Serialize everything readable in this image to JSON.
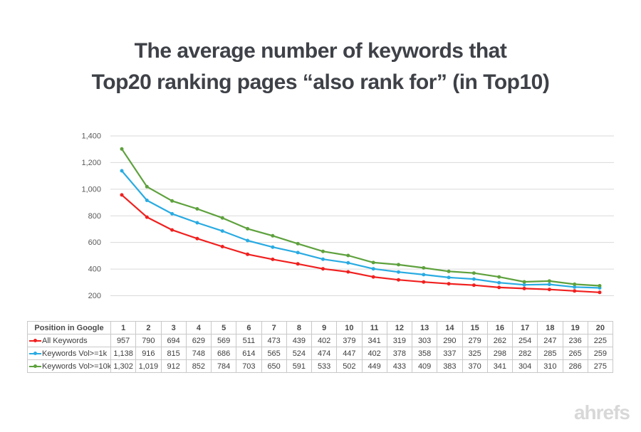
{
  "title": {
    "line1": "The average number of keywords that",
    "line2": "Top20 ranking pages “also rank for” (in Top10)"
  },
  "footer": {
    "logo_text": "ahrefs"
  },
  "colors": {
    "title_text": "#3e4147",
    "grid": "#d9d9d9",
    "axis_label": "#595959",
    "table_border": "#c9c9c9",
    "table_text": "#3d3d3d",
    "logo_text": "#d8d8d8",
    "series_red": "#f0201f",
    "series_blue": "#29abe2",
    "series_green": "#5ea13d"
  },
  "chart_data": {
    "type": "line",
    "title": "The average number of keywords that Top20 ranking pages “also rank for” (in Top10)",
    "x_label_header": "Position in Google",
    "x": [
      1,
      2,
      3,
      4,
      5,
      6,
      7,
      8,
      9,
      10,
      11,
      12,
      13,
      14,
      15,
      16,
      17,
      18,
      19,
      20
    ],
    "series": [
      {
        "name": "All Keywords",
        "color": "#f0201f",
        "values": [
          957,
          790,
          694,
          629,
          569,
          511,
          473,
          439,
          402,
          379,
          341,
          319,
          303,
          290,
          279,
          262,
          254,
          247,
          236,
          225
        ]
      },
      {
        "name": "Keywords Vol>=1k",
        "color": "#29abe2",
        "values": [
          1138,
          916,
          815,
          748,
          686,
          614,
          565,
          524,
          474,
          447,
          402,
          378,
          358,
          337,
          325,
          298,
          282,
          285,
          265,
          259
        ]
      },
      {
        "name": "Keywords Vol>=10k",
        "color": "#5ea13d",
        "values": [
          1302,
          1019,
          912,
          852,
          784,
          703,
          650,
          591,
          533,
          502,
          449,
          433,
          409,
          383,
          370,
          341,
          304,
          310,
          286,
          275
        ]
      }
    ],
    "ylim": [
      200,
      1400
    ],
    "y_ticks": [
      200,
      400,
      600,
      800,
      1000,
      1200,
      1400
    ],
    "grid": "horizontal-only",
    "legend_position": "table-first-column",
    "marker": "dot"
  }
}
